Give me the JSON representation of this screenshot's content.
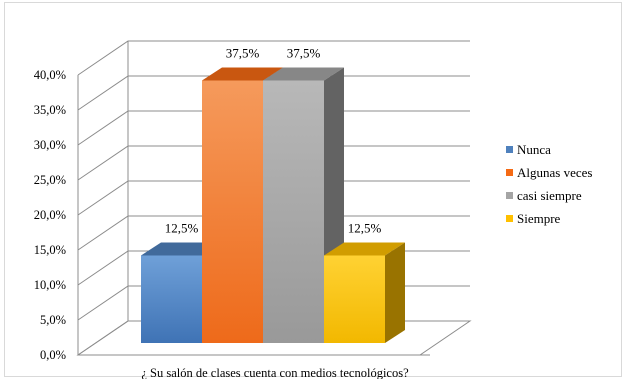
{
  "chart_data": {
    "type": "bar",
    "style": "3d-clustered-column",
    "categories": [
      "¿ Su salón de clases cuenta con medios tecnológicos?"
    ],
    "series": [
      {
        "name": "Nunca",
        "values": [
          12.5
        ],
        "color": "#4f81bd",
        "label": "12,5%"
      },
      {
        "name": "Algunas veces",
        "values": [
          37.5
        ],
        "color": "#f56a14",
        "label": "37,5%"
      },
      {
        "name": "casi siempre",
        "values": [
          37.5
        ],
        "color": "#a5a5a5",
        "label": "37,5%"
      },
      {
        "name": "Siempre",
        "values": [
          12.5
        ],
        "color": "#ffc000",
        "label": "12,5%"
      }
    ],
    "xlabel": "¿ Su salón de clases cuenta con medios tecnológicos?",
    "ylabel": "",
    "ylim": [
      0,
      40
    ],
    "yticks": [
      {
        "value": 0,
        "label": "0,0%"
      },
      {
        "value": 5,
        "label": "5,0%"
      },
      {
        "value": 10,
        "label": "10,0%"
      },
      {
        "value": 15,
        "label": "15,0%"
      },
      {
        "value": 20,
        "label": "20,0%"
      },
      {
        "value": 25,
        "label": "25,0%"
      },
      {
        "value": 30,
        "label": "30,0%"
      },
      {
        "value": 35,
        "label": "35,0%"
      },
      {
        "value": 40,
        "label": "40,0%"
      }
    ],
    "grid": true,
    "legend": "right"
  }
}
